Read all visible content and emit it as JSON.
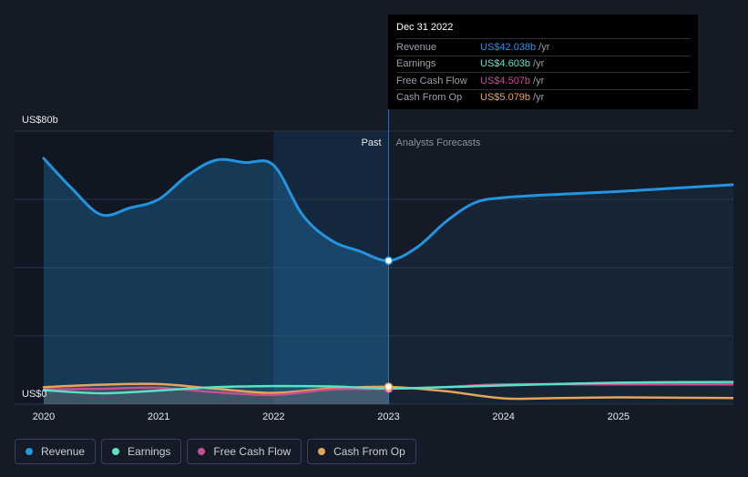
{
  "colors": {
    "background": "#151b26",
    "revenue": "#2394df",
    "earnings": "#5ce0c8",
    "fcf": "#c74e91",
    "cfo": "#e6a459",
    "past_shade": "#193452",
    "grid": "#2b3240"
  },
  "tooltip": {
    "date": "Dec 31 2022",
    "rows": [
      {
        "label": "Revenue",
        "value": "US$42.038b",
        "unit": "/yr",
        "color": "#2394df"
      },
      {
        "label": "Earnings",
        "value": "US$4.603b",
        "unit": "/yr",
        "color": "#5ce0c8"
      },
      {
        "label": "Free Cash Flow",
        "value": "US$4.507b",
        "unit": "/yr",
        "color": "#c74e91"
      },
      {
        "label": "Cash From Op",
        "value": "US$5.079b",
        "unit": "/yr",
        "color": "#e6a459"
      }
    ]
  },
  "legend": [
    {
      "label": "Revenue",
      "color": "#2394df"
    },
    {
      "label": "Earnings",
      "color": "#5ce0c8"
    },
    {
      "label": "Free Cash Flow",
      "color": "#c74e91"
    },
    {
      "label": "Cash From Op",
      "color": "#e6a459"
    }
  ],
  "chart_data": {
    "type": "line",
    "y_top_label": "US$80b",
    "y_bottom_label": "US$0",
    "ylim": [
      0,
      80
    ],
    "xlim": [
      2020,
      2026
    ],
    "x_ticks": [
      "2020",
      "2021",
      "2022",
      "2023",
      "2024",
      "2025"
    ],
    "past_label": "Past",
    "forecast_label": "Analysts Forecasts",
    "divider_x": 2023,
    "highlight_x_start": 2022,
    "series": [
      {
        "name": "Revenue",
        "key": "revenue",
        "fill": true,
        "points": [
          [
            2020,
            72
          ],
          [
            2020.25,
            63
          ],
          [
            2020.5,
            55.5
          ],
          [
            2020.75,
            57.5
          ],
          [
            2021,
            60
          ],
          [
            2021.25,
            67
          ],
          [
            2021.5,
            71.5
          ],
          [
            2021.75,
            70.8
          ],
          [
            2022,
            70
          ],
          [
            2022.25,
            55.5
          ],
          [
            2022.5,
            48
          ],
          [
            2022.75,
            44.8
          ],
          [
            2023,
            42.04
          ],
          [
            2023.25,
            46
          ],
          [
            2023.5,
            53.5
          ],
          [
            2023.75,
            59
          ],
          [
            2024,
            60.5
          ],
          [
            2024.5,
            61.5
          ],
          [
            2025,
            62.3
          ],
          [
            2025.5,
            63.3
          ],
          [
            2026,
            64.3
          ]
        ]
      },
      {
        "name": "Earnings",
        "key": "earnings",
        "fill": false,
        "points": [
          [
            2020,
            4.1
          ],
          [
            2020.5,
            3.2
          ],
          [
            2021,
            4.0
          ],
          [
            2021.5,
            5.0
          ],
          [
            2022,
            5.3
          ],
          [
            2022.5,
            5.2
          ],
          [
            2023,
            4.6
          ],
          [
            2023.5,
            5.0
          ],
          [
            2024,
            5.5
          ],
          [
            2025,
            6.3
          ],
          [
            2026,
            6.5
          ]
        ]
      },
      {
        "name": "Free Cash Flow",
        "key": "fcf",
        "fill": false,
        "points": [
          [
            2020,
            4.3
          ],
          [
            2020.5,
            4.5
          ],
          [
            2021,
            4.8
          ],
          [
            2021.5,
            3.5
          ],
          [
            2022,
            2.7
          ],
          [
            2022.5,
            4.3
          ],
          [
            2023,
            4.5
          ],
          [
            2023.5,
            5.0
          ],
          [
            2024,
            5.8
          ],
          [
            2025,
            5.8
          ],
          [
            2026,
            5.8
          ]
        ]
      },
      {
        "name": "Cash From Op",
        "key": "cfo",
        "fill": false,
        "points": [
          [
            2020,
            5.0
          ],
          [
            2020.5,
            5.7
          ],
          [
            2021,
            5.9
          ],
          [
            2021.5,
            4.5
          ],
          [
            2022,
            3.3
          ],
          [
            2022.5,
            4.6
          ],
          [
            2023,
            5.08
          ],
          [
            2023.5,
            3.8
          ],
          [
            2024,
            1.7
          ],
          [
            2024.5,
            1.8
          ],
          [
            2025,
            2.0
          ],
          [
            2025.5,
            1.9
          ],
          [
            2026,
            1.8
          ]
        ]
      }
    ]
  }
}
